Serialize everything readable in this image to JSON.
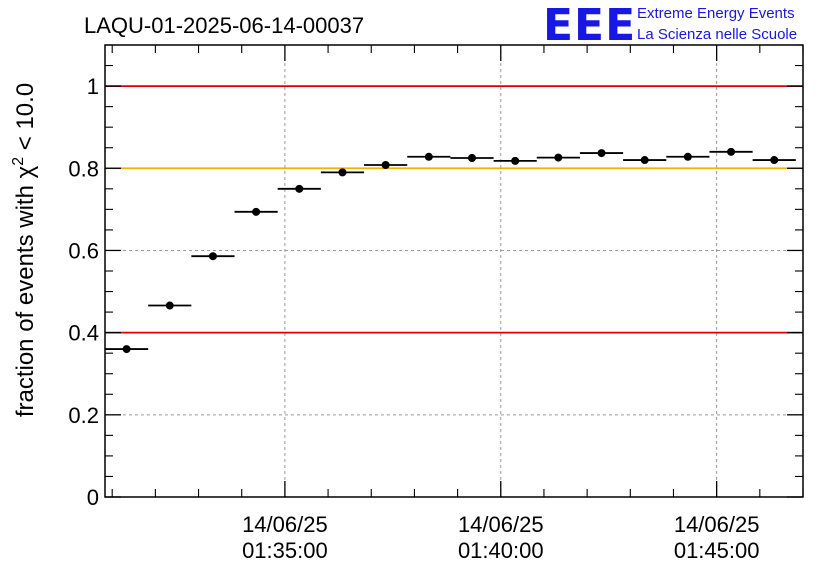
{
  "chart_data": {
    "type": "scatter",
    "title": "LAQU-01-2025-06-14-00037",
    "ylabel": {
      "prefix": "fraction of events with ",
      "chi": "χ",
      "sup": "2",
      "suffix": " < 10.0"
    },
    "ylim": [
      0,
      1.1
    ],
    "xlim": [
      "01:30:50",
      "01:47:00"
    ],
    "x_ticks": [
      {
        "date": "14/06/25",
        "time": "01:35:00"
      },
      {
        "date": "14/06/25",
        "time": "01:40:00"
      },
      {
        "date": "14/06/25",
        "time": "01:45:00"
      }
    ],
    "y_ticks": [
      "0",
      "0.2",
      "0.4",
      "0.6",
      "0.8",
      "1"
    ],
    "grid": true,
    "reference_lines": [
      {
        "y": 1.0,
        "color": "#e00000"
      },
      {
        "y": 0.8,
        "color": "#f0b400"
      },
      {
        "y": 0.4,
        "color": "#e00000"
      }
    ],
    "series": [
      {
        "marker_color": "#000000",
        "points": [
          {
            "x_start": "01:30:50",
            "x_end": "01:31:50",
            "y": 0.36
          },
          {
            "x_start": "01:31:50",
            "x_end": "01:32:50",
            "y": 0.466
          },
          {
            "x_start": "01:32:50",
            "x_end": "01:33:50",
            "y": 0.586
          },
          {
            "x_start": "01:33:50",
            "x_end": "01:34:50",
            "y": 0.694
          },
          {
            "x_start": "01:34:50",
            "x_end": "01:35:50",
            "y": 0.75
          },
          {
            "x_start": "01:35:50",
            "x_end": "01:36:50",
            "y": 0.79
          },
          {
            "x_start": "01:36:50",
            "x_end": "01:37:50",
            "y": 0.808
          },
          {
            "x_start": "01:37:50",
            "x_end": "01:38:50",
            "y": 0.828
          },
          {
            "x_start": "01:38:50",
            "x_end": "01:39:50",
            "y": 0.825
          },
          {
            "x_start": "01:39:50",
            "x_end": "01:40:50",
            "y": 0.818
          },
          {
            "x_start": "01:40:50",
            "x_end": "01:41:50",
            "y": 0.826
          },
          {
            "x_start": "01:41:50",
            "x_end": "01:42:50",
            "y": 0.837
          },
          {
            "x_start": "01:42:50",
            "x_end": "01:43:50",
            "y": 0.82
          },
          {
            "x_start": "01:43:50",
            "x_end": "01:44:50",
            "y": 0.828
          },
          {
            "x_start": "01:44:50",
            "x_end": "01:45:50",
            "y": 0.84
          },
          {
            "x_start": "01:45:50",
            "x_end": "01:46:50",
            "y": 0.82
          }
        ]
      }
    ]
  },
  "logo": {
    "mark": "EEE",
    "line1": "Extreme Energy Events",
    "line2": "La Scienza nelle Scuole",
    "color": "#1717e6"
  }
}
